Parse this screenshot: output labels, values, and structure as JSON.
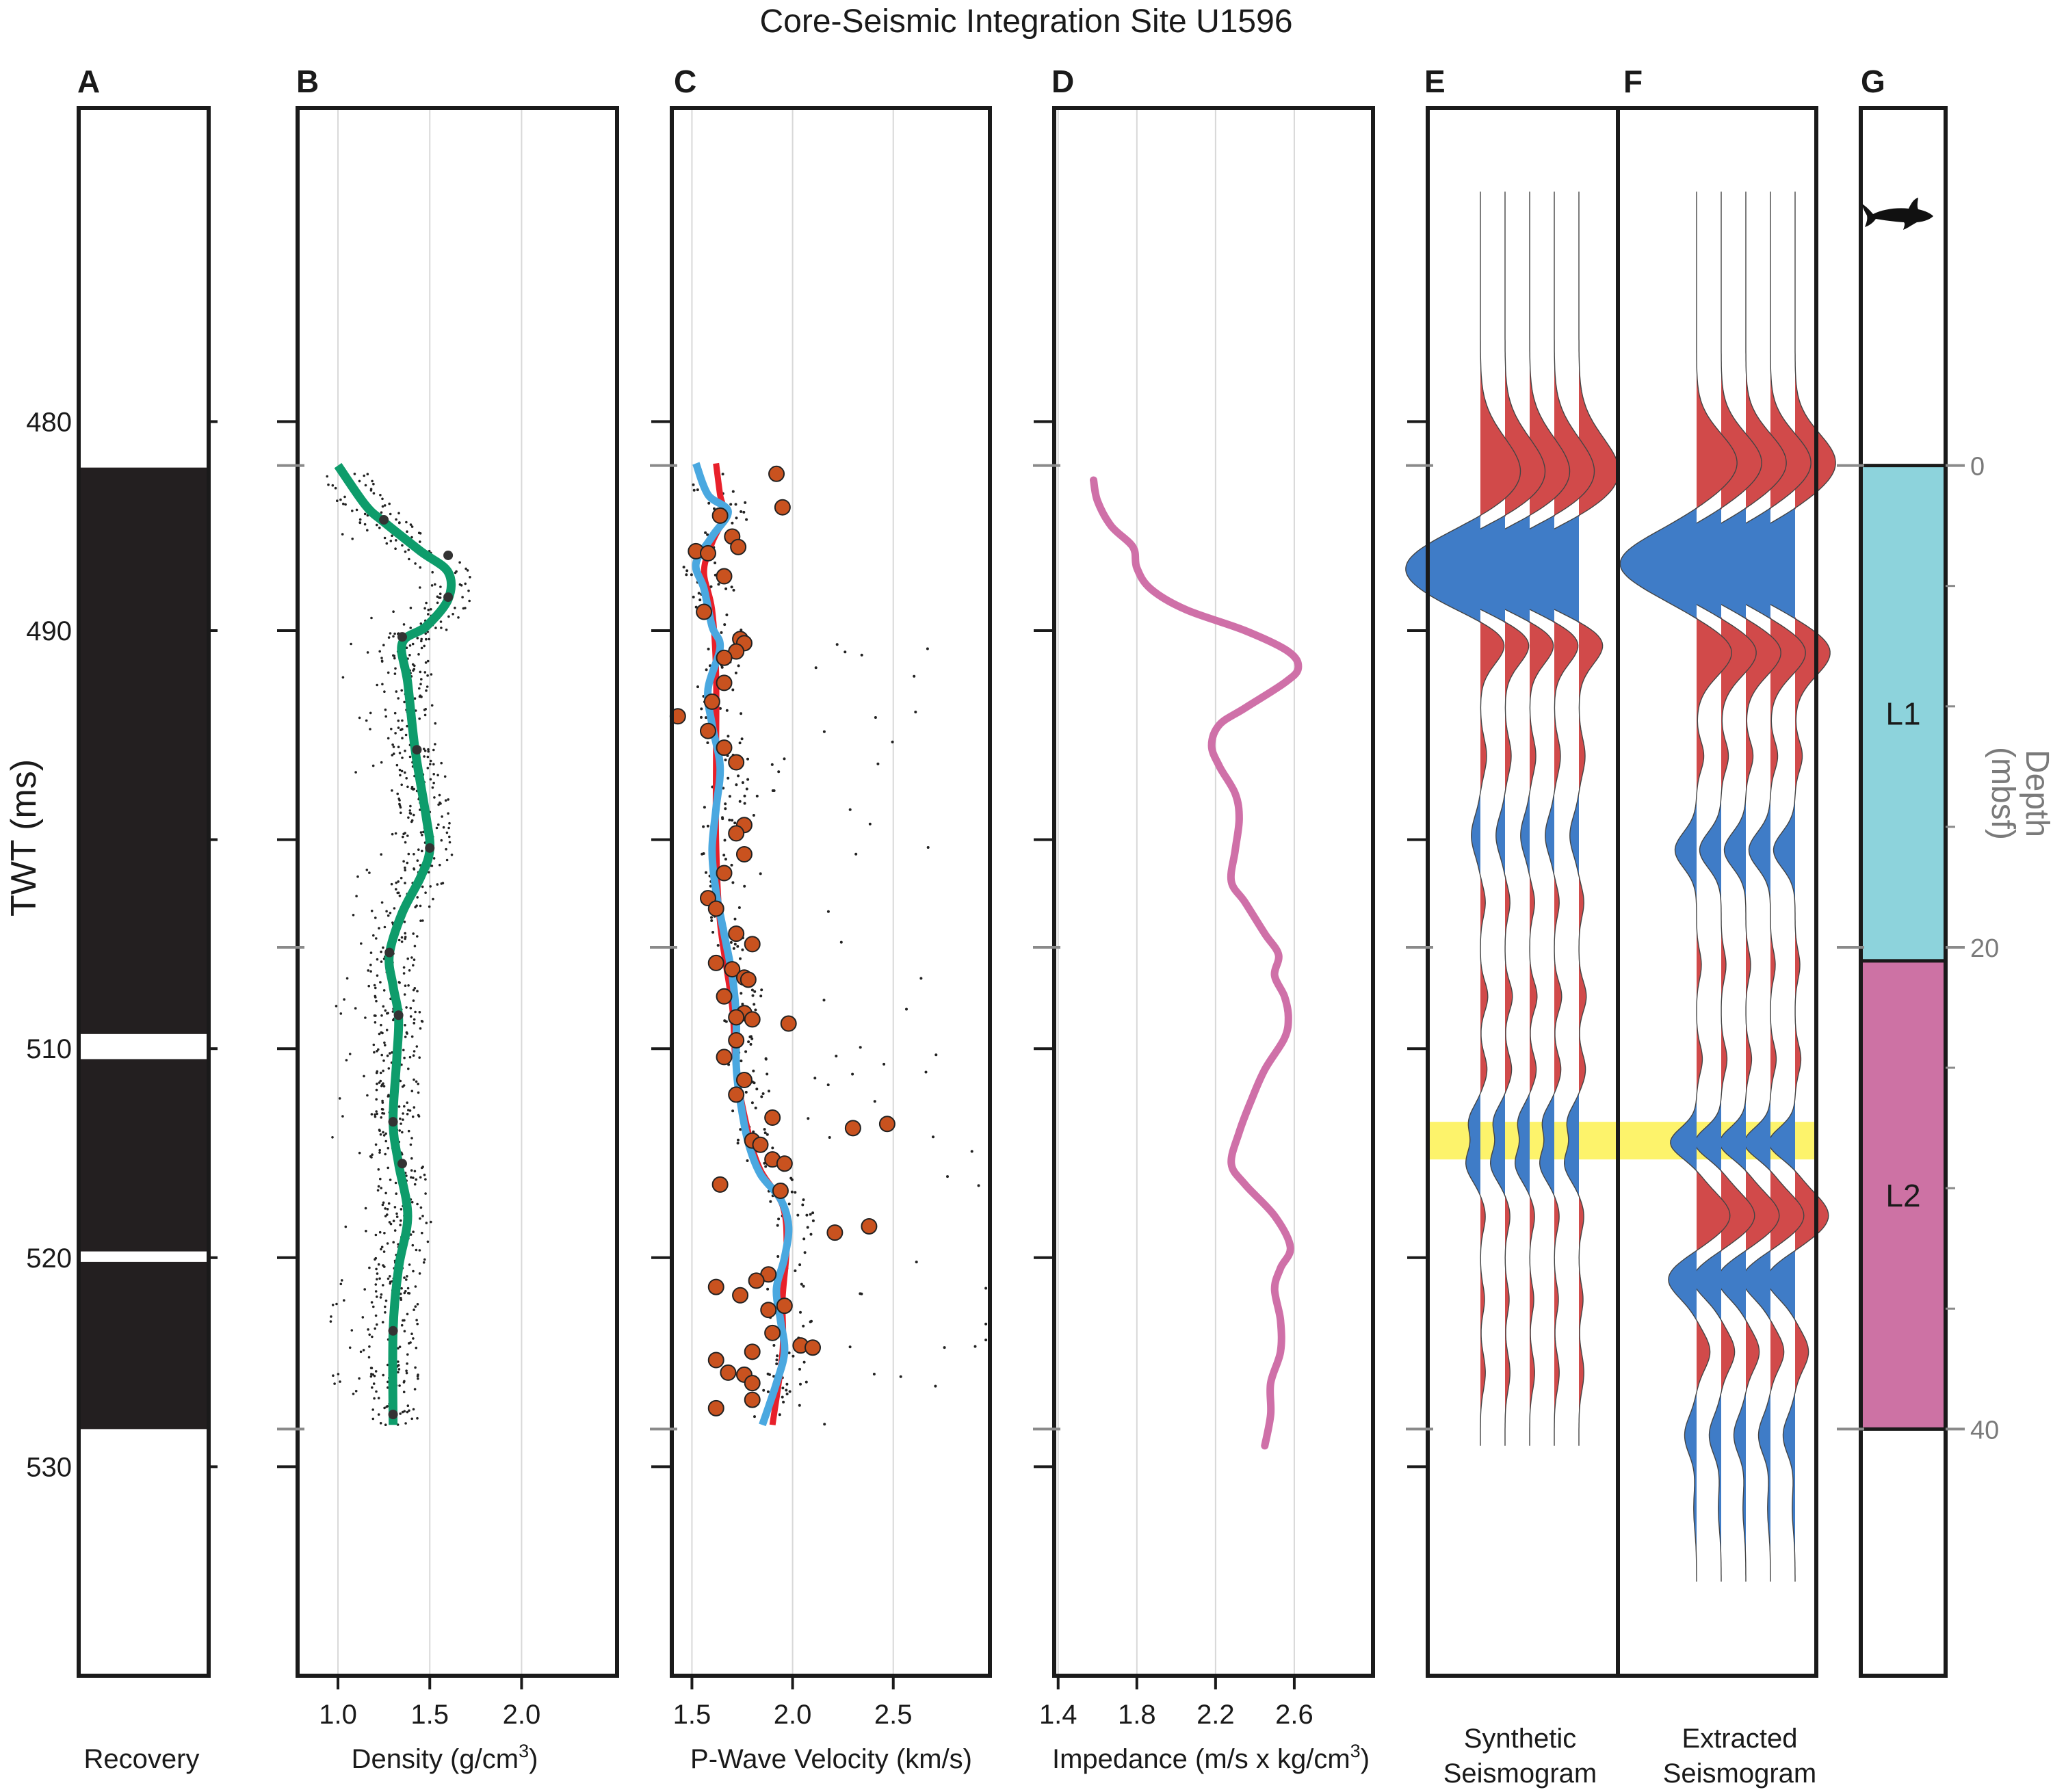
{
  "title": "Core-Seismic Integration Site U1596",
  "colors": {
    "frame": "#1a1a1a",
    "density_line": "#0e9c6b",
    "velocity_line": "#4aa8e0",
    "velocity_red": "#e8202a",
    "velocity_dots": "#c9521f",
    "impedance_line": "#cf70a8",
    "positive_lobe": "#d14a4a",
    "negative_lobe": "#3f7cc7",
    "highlight": "#fdf36b",
    "unit_L1": "#8dd3dc",
    "unit_L2": "#cd72a4",
    "recovery_fill": "#231f20",
    "grid": "#d8d8d8",
    "depth_axis": "#8a8a8a"
  },
  "chart_data": [
    {
      "panel": "A",
      "type": "table",
      "xlabel": "Recovery",
      "ylabel": "TWT (ms)",
      "ylim": [
        465,
        540
      ],
      "yticks": [
        480,
        490,
        500,
        510,
        520,
        530
      ],
      "ytick_labels": [
        "480",
        "490",
        "",
        "510",
        "520",
        "530"
      ],
      "recovered_intervals_twt": [
        [
          482.2,
          509.3
        ],
        [
          510.5,
          519.7
        ],
        [
          520.2,
          528.2
        ]
      ]
    },
    {
      "panel": "B",
      "type": "line",
      "xlabel": "Density (g/cm",
      "xlabel_sup": "3",
      "xlabel_end": ")",
      "xlim": [
        0.78,
        2.52
      ],
      "xticks": [
        1.0,
        1.5,
        2.0
      ],
      "xtick_labels": [
        "1.0",
        "1.5",
        "2.0"
      ],
      "series": [
        {
          "role": "smoothed",
          "points": [
            [
              1.0,
              482.1
            ],
            [
              1.15,
              484.0
            ],
            [
              1.25,
              484.8
            ],
            [
              1.45,
              486.2
            ],
            [
              1.6,
              487.2
            ],
            [
              1.6,
              488.5
            ],
            [
              1.48,
              489.8
            ],
            [
              1.35,
              490.6
            ],
            [
              1.38,
              492.5
            ],
            [
              1.42,
              495.7
            ],
            [
              1.48,
              498.9
            ],
            [
              1.5,
              500.5
            ],
            [
              1.45,
              501.8
            ],
            [
              1.35,
              503.5
            ],
            [
              1.28,
              505.5
            ],
            [
              1.3,
              507.0
            ],
            [
              1.33,
              508.5
            ],
            [
              1.32,
              510.5
            ],
            [
              1.3,
              513.5
            ],
            [
              1.33,
              515.5
            ],
            [
              1.38,
              518.0
            ],
            [
              1.33,
              520.5
            ],
            [
              1.3,
              523.5
            ],
            [
              1.3,
              528.0
            ]
          ]
        },
        {
          "role": "samples",
          "values_digitized": "scattered density measurements (about 0.85-1.6 g/cm3) along the recovered cores",
          "markers": [
            [
              1.25,
              484.7
            ],
            [
              1.6,
              486.4
            ],
            [
              1.6,
              488.4
            ],
            [
              1.35,
              490.3
            ],
            [
              1.43,
              495.7
            ],
            [
              1.5,
              500.4
            ],
            [
              1.28,
              505.4
            ],
            [
              1.33,
              508.4
            ],
            [
              1.3,
              513.5
            ],
            [
              1.35,
              515.5
            ],
            [
              1.3,
              523.5
            ],
            [
              1.3,
              527.5
            ]
          ]
        }
      ]
    },
    {
      "panel": "C",
      "type": "line",
      "xlabel": "P-Wave Velocity (km/s)",
      "xlim": [
        1.4,
        2.98
      ],
      "xticks": [
        1.5,
        2.0,
        2.5
      ],
      "xtick_labels": [
        "1.5",
        "2.0",
        "2.5"
      ],
      "series": [
        {
          "role": "smoothed-blue",
          "points": [
            [
              1.52,
              482.0
            ],
            [
              1.58,
              483.5
            ],
            [
              1.68,
              484.3
            ],
            [
              1.6,
              485.5
            ],
            [
              1.52,
              486.8
            ],
            [
              1.56,
              488.0
            ],
            [
              1.6,
              489.8
            ],
            [
              1.64,
              490.8
            ],
            [
              1.58,
              492.8
            ],
            [
              1.6,
              494.5
            ],
            [
              1.64,
              496.5
            ],
            [
              1.62,
              498.5
            ],
            [
              1.6,
              500.5
            ],
            [
              1.62,
              502.5
            ],
            [
              1.66,
              504.5
            ],
            [
              1.7,
              506.5
            ],
            [
              1.72,
              508.5
            ],
            [
              1.72,
              510.8
            ],
            [
              1.74,
              512.5
            ],
            [
              1.78,
              514.5
            ],
            [
              1.84,
              516.0
            ],
            [
              1.94,
              517.2
            ],
            [
              1.98,
              518.5
            ],
            [
              1.96,
              520.0
            ],
            [
              1.92,
              521.5
            ],
            [
              1.94,
              523.0
            ],
            [
              1.96,
              524.5
            ],
            [
              1.92,
              526.0
            ],
            [
              1.85,
              528.0
            ]
          ]
        },
        {
          "role": "smoothed-red",
          "points": [
            [
              1.62,
              482.0
            ],
            [
              1.64,
              483.5
            ],
            [
              1.66,
              484.5
            ],
            [
              1.6,
              485.8
            ],
            [
              1.56,
              487.2
            ],
            [
              1.6,
              489.0
            ],
            [
              1.62,
              492.0
            ],
            [
              1.62,
              496.0
            ],
            [
              1.62,
              500.0
            ],
            [
              1.64,
              504.0
            ],
            [
              1.7,
              508.0
            ],
            [
              1.72,
              511.0
            ],
            [
              1.78,
              514.0
            ],
            [
              1.84,
              515.8
            ],
            [
              1.95,
              517.5
            ],
            [
              1.97,
              519.5
            ],
            [
              1.95,
              522.0
            ],
            [
              1.95,
              524.5
            ],
            [
              1.9,
              528.0
            ]
          ]
        },
        {
          "role": "discrete-measurements",
          "points": [
            [
              1.92,
              482.5
            ],
            [
              1.95,
              484.1
            ],
            [
              1.64,
              484.5
            ],
            [
              1.7,
              485.5
            ],
            [
              1.52,
              486.2
            ],
            [
              1.58,
              486.3
            ],
            [
              1.73,
              486.0
            ],
            [
              1.66,
              487.4
            ],
            [
              1.56,
              489.1
            ],
            [
              1.74,
              490.4
            ],
            [
              1.76,
              490.6
            ],
            [
              1.72,
              491.0
            ],
            [
              1.66,
              491.3
            ],
            [
              1.66,
              492.5
            ],
            [
              1.6,
              493.4
            ],
            [
              1.43,
              494.1
            ],
            [
              1.58,
              494.8
            ],
            [
              1.66,
              495.6
            ],
            [
              1.72,
              496.3
            ],
            [
              1.76,
              499.3
            ],
            [
              1.72,
              499.7
            ],
            [
              1.76,
              500.7
            ],
            [
              1.66,
              501.6
            ],
            [
              1.58,
              502.8
            ],
            [
              1.62,
              503.3
            ],
            [
              1.72,
              504.5
            ],
            [
              1.8,
              505.0
            ],
            [
              1.62,
              505.9
            ],
            [
              1.7,
              506.2
            ],
            [
              1.76,
              506.6
            ],
            [
              1.78,
              506.7
            ],
            [
              1.66,
              507.5
            ],
            [
              1.76,
              508.3
            ],
            [
              1.72,
              508.5
            ],
            [
              1.8,
              508.6
            ],
            [
              1.98,
              508.8
            ],
            [
              1.72,
              509.6
            ],
            [
              1.66,
              510.4
            ],
            [
              1.76,
              511.5
            ],
            [
              1.72,
              512.2
            ],
            [
              1.9,
              513.3
            ],
            [
              2.3,
              513.8
            ],
            [
              2.47,
              513.6
            ],
            [
              1.8,
              514.4
            ],
            [
              1.84,
              514.6
            ],
            [
              1.9,
              515.3
            ],
            [
              1.96,
              515.5
            ],
            [
              1.64,
              516.5
            ],
            [
              1.94,
              516.8
            ],
            [
              2.21,
              518.8
            ],
            [
              2.38,
              518.5
            ],
            [
              1.88,
              520.8
            ],
            [
              1.82,
              521.1
            ],
            [
              1.62,
              521.4
            ],
            [
              1.74,
              521.8
            ],
            [
              1.96,
              522.3
            ],
            [
              1.88,
              522.5
            ],
            [
              1.9,
              523.6
            ],
            [
              2.04,
              524.2
            ],
            [
              2.1,
              524.3
            ],
            [
              1.8,
              524.5
            ],
            [
              1.62,
              524.9
            ],
            [
              1.68,
              525.5
            ],
            [
              1.76,
              525.6
            ],
            [
              1.8,
              526.0
            ],
            [
              1.8,
              526.8
            ],
            [
              1.62,
              527.2
            ]
          ]
        }
      ]
    },
    {
      "panel": "D",
      "type": "line",
      "xlabel": "Impedance (m/s x kg/cm",
      "xlabel_sup": "3",
      "xlabel_end": ")",
      "xlim": [
        1.38,
        3.0
      ],
      "xticks": [
        1.4,
        1.8,
        2.2,
        2.6
      ],
      "xtick_labels": [
        "1.4",
        "1.8",
        "2.2",
        "2.6"
      ],
      "series": [
        {
          "role": "impedance",
          "points": [
            [
              1.58,
              482.8
            ],
            [
              1.6,
              483.8
            ],
            [
              1.67,
              485.0
            ],
            [
              1.78,
              486.0
            ],
            [
              1.8,
              487.0
            ],
            [
              1.87,
              488.0
            ],
            [
              2.05,
              489.0
            ],
            [
              2.35,
              490.0
            ],
            [
              2.57,
              491.0
            ],
            [
              2.62,
              491.8
            ],
            [
              2.55,
              492.5
            ],
            [
              2.35,
              493.7
            ],
            [
              2.22,
              494.5
            ],
            [
              2.18,
              495.5
            ],
            [
              2.22,
              496.5
            ],
            [
              2.3,
              497.8
            ],
            [
              2.32,
              499.0
            ],
            [
              2.3,
              500.5
            ],
            [
              2.28,
              502.0
            ],
            [
              2.35,
              503.0
            ],
            [
              2.45,
              504.5
            ],
            [
              2.52,
              505.5
            ],
            [
              2.5,
              506.5
            ],
            [
              2.55,
              507.5
            ],
            [
              2.57,
              508.5
            ],
            [
              2.55,
              509.5
            ],
            [
              2.45,
              511.0
            ],
            [
              2.38,
              512.5
            ],
            [
              2.32,
              514.0
            ],
            [
              2.28,
              515.5
            ],
            [
              2.35,
              516.5
            ],
            [
              2.5,
              518.0
            ],
            [
              2.58,
              519.5
            ],
            [
              2.53,
              520.5
            ],
            [
              2.5,
              521.5
            ],
            [
              2.53,
              523.0
            ],
            [
              2.53,
              524.5
            ],
            [
              2.48,
              526.0
            ],
            [
              2.48,
              527.5
            ],
            [
              2.45,
              529.0
            ]
          ]
        }
      ]
    },
    {
      "panel": "E",
      "type": "line",
      "xlabel": "Synthetic",
      "xlabel2": "Seismogram",
      "trace_count": 5,
      "twt_range": [
        469,
        529
      ],
      "events": [
        {
          "twt": 482.5,
          "amplitude": 1.0,
          "width": 2.4
        },
        {
          "twt": 487.0,
          "amplitude": -1.85,
          "width": 2.2
        },
        {
          "twt": 490.5,
          "amplitude": 0.7,
          "width": 1.4
        },
        {
          "twt": 496.0,
          "amplitude": 0.15,
          "width": 1.2
        },
        {
          "twt": 499.8,
          "amplitude": -0.22,
          "width": 1.3
        },
        {
          "twt": 503.0,
          "amplitude": 0.12,
          "width": 1.0
        },
        {
          "twt": 507.5,
          "amplitude": 0.18,
          "width": 1.0
        },
        {
          "twt": 511.0,
          "amplitude": 0.16,
          "width": 1.0
        },
        {
          "twt": 513.5,
          "amplitude": -0.28,
          "width": 1.0
        },
        {
          "twt": 515.5,
          "amplitude": -0.35,
          "width": 1.1
        },
        {
          "twt": 518.0,
          "amplitude": 0.12,
          "width": 1.0
        },
        {
          "twt": 522.0,
          "amplitude": 0.1,
          "width": 1.0
        },
        {
          "twt": 525.5,
          "amplitude": 0.12,
          "width": 1.2
        }
      ],
      "highlight_twt": [
        513.5,
        515.3
      ]
    },
    {
      "panel": "F",
      "type": "line",
      "xlabel": "Extracted",
      "xlabel2": "Seismogram",
      "trace_count": 5,
      "twt_range": [
        469,
        535.5
      ],
      "events": [
        {
          "twt": 482.0,
          "amplitude": 0.85,
          "width": 2.0
        },
        {
          "twt": 486.8,
          "amplitude": -1.6,
          "width": 2.0
        },
        {
          "twt": 491.0,
          "amplitude": 0.75,
          "width": 1.6
        },
        {
          "twt": 496.0,
          "amplitude": 0.15,
          "width": 1.0
        },
        {
          "twt": 500.5,
          "amplitude": -0.45,
          "width": 1.2
        },
        {
          "twt": 506.0,
          "amplitude": 0.1,
          "width": 1.0
        },
        {
          "twt": 510.5,
          "amplitude": 0.12,
          "width": 1.0
        },
        {
          "twt": 514.5,
          "amplitude": -0.55,
          "width": 1.0
        },
        {
          "twt": 518.0,
          "amplitude": 0.7,
          "width": 1.5
        },
        {
          "twt": 521.0,
          "amplitude": -0.6,
          "width": 1.3
        },
        {
          "twt": 524.5,
          "amplitude": 0.28,
          "width": 1.2
        },
        {
          "twt": 528.5,
          "amplitude": -0.25,
          "width": 1.3
        },
        {
          "twt": 532.0,
          "amplitude": -0.06,
          "width": 1.5
        }
      ],
      "highlight_twt": [
        513.5,
        515.3
      ]
    },
    {
      "panel": "G",
      "type": "table",
      "ylabel": "Depth",
      "ylabel2": "(mbsf)",
      "depth_ticks": [
        0,
        20,
        40
      ],
      "depth_tick_labels": [
        "0",
        "20",
        "40"
      ],
      "units": [
        {
          "label": "L1",
          "twt_top": 482.1,
          "twt_bottom": 505.8,
          "color": "#8dd3dc"
        },
        {
          "label": "L2",
          "twt_top": 505.8,
          "twt_bottom": 528.2,
          "color": "#cd72a4"
        }
      ],
      "icon": "shark-icon",
      "icon_twt": 473.5
    }
  ]
}
